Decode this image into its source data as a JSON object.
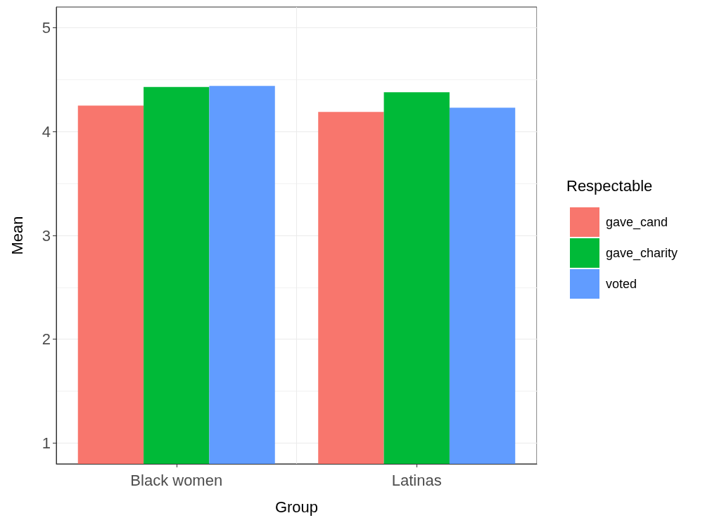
{
  "chart_data": {
    "type": "bar",
    "xlabel": "Group",
    "ylabel": "Mean",
    "legend_title": "Respectable",
    "categories": [
      "Black women",
      "Latinas"
    ],
    "series": [
      {
        "name": "gave_cand",
        "color": "#f8766d",
        "values": [
          4.25,
          4.19
        ]
      },
      {
        "name": "gave_charity",
        "color": "#00ba38",
        "values": [
          4.43,
          4.38
        ]
      },
      {
        "name": "voted",
        "color": "#619cff",
        "values": [
          4.44,
          4.23
        ]
      }
    ],
    "ylim": [
      0.8,
      5.2
    ],
    "yticks": [
      1,
      2,
      3,
      4,
      5
    ],
    "grid": true,
    "legend": "right"
  }
}
